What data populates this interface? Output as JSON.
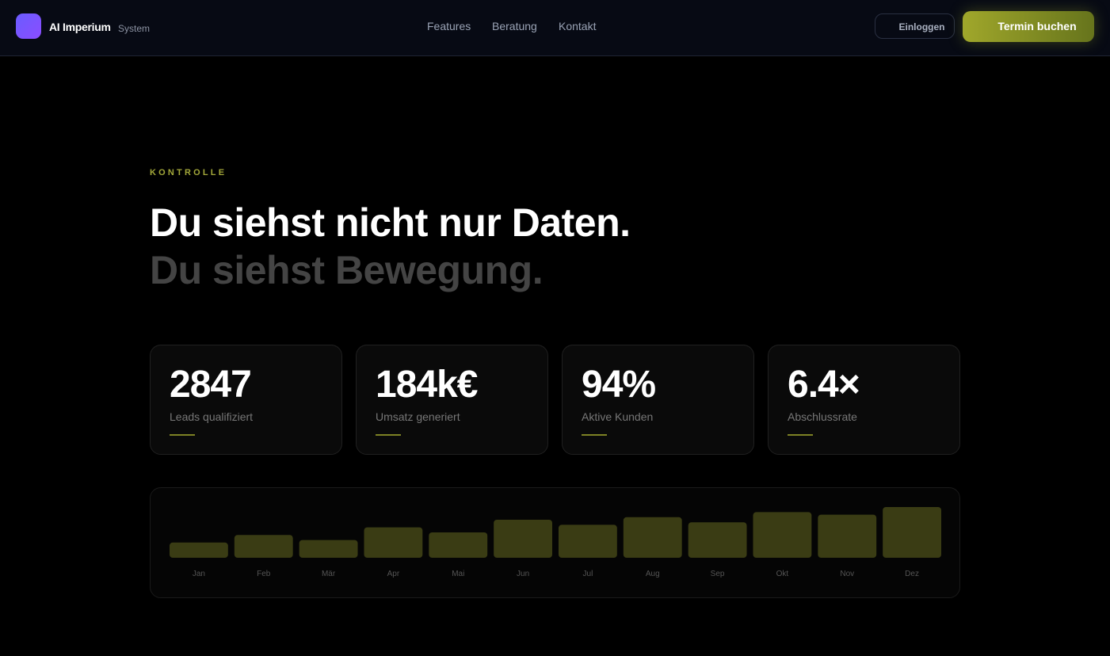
{
  "header": {
    "brand": "AI Imperium",
    "brand_sub": "System",
    "nav": [
      "Features",
      "Beratung",
      "Kontakt"
    ],
    "login": "Einloggen",
    "cta": "Termin buchen"
  },
  "section": {
    "eyebrow": "KONTROLLE",
    "headline_1": "Du siehst nicht nur Daten.",
    "headline_2": "Du siehst Bewegung."
  },
  "stats": [
    {
      "value": "2847",
      "label": "Leads qualifiziert"
    },
    {
      "value": "184k€",
      "label": "Umsatz generiert"
    },
    {
      "value": "94%",
      "label": "Aktive Kunden"
    },
    {
      "value": "6.4×",
      "label": "Abschlussrate"
    }
  ],
  "chart_data": {
    "type": "bar",
    "categories": [
      "Jan",
      "Feb",
      "Mär",
      "Apr",
      "Mai",
      "Jun",
      "Jul",
      "Aug",
      "Sep",
      "Okt",
      "Nov",
      "Dez"
    ],
    "values": [
      30,
      45,
      35,
      60,
      50,
      75,
      65,
      80,
      70,
      90,
      85,
      100
    ],
    "color": "#3a3c14"
  }
}
